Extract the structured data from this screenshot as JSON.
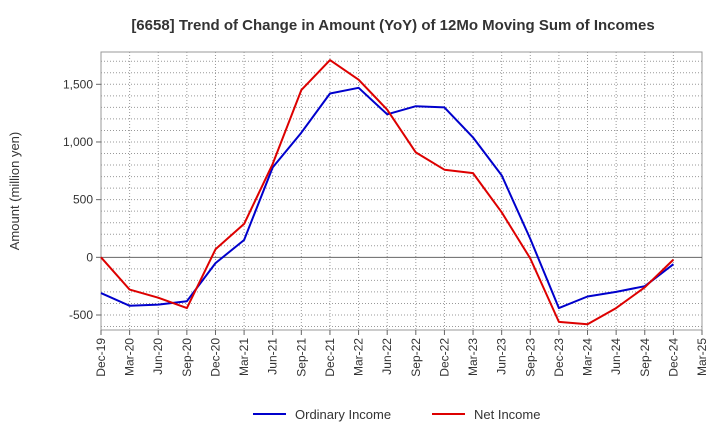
{
  "chart_data": {
    "type": "line",
    "title": "[6658]  Trend of Change in Amount (YoY) of 12Mo Moving Sum of Incomes",
    "xlabel": "",
    "ylabel": "Amount (million yen)",
    "ylim": [
      -630,
      1780
    ],
    "yticks": [
      -500,
      0,
      500,
      1000,
      1500
    ],
    "ytick_labels": [
      "-500",
      "0",
      "500",
      "1,000",
      "1,500"
    ],
    "grid": true,
    "legend_position": "bottom-center",
    "categories": [
      "Dec-19",
      "Mar-20",
      "Jun-20",
      "Sep-20",
      "Dec-20",
      "Mar-21",
      "Jun-21",
      "Sep-21",
      "Dec-21",
      "Mar-22",
      "Jun-22",
      "Sep-22",
      "Dec-22",
      "Mar-23",
      "Jun-23",
      "Sep-23",
      "Dec-23",
      "Mar-24",
      "Jun-24",
      "Sep-24",
      "Dec-24",
      "Mar-25"
    ],
    "series": [
      {
        "name": "Ordinary Income",
        "color": "#0000cc",
        "values": [
          -310,
          -420,
          -410,
          -380,
          -50,
          150,
          780,
          1080,
          1420,
          1470,
          1240,
          1310,
          1300,
          1040,
          710,
          160,
          -440,
          -340,
          -300,
          -250,
          -60,
          null
        ]
      },
      {
        "name": "Net Income",
        "color": "#dd0000",
        "values": [
          0,
          -280,
          -350,
          -440,
          70,
          290,
          810,
          1450,
          1710,
          1540,
          1280,
          910,
          760,
          730,
          390,
          -10,
          -560,
          -580,
          -440,
          -260,
          -20,
          null
        ]
      }
    ]
  }
}
